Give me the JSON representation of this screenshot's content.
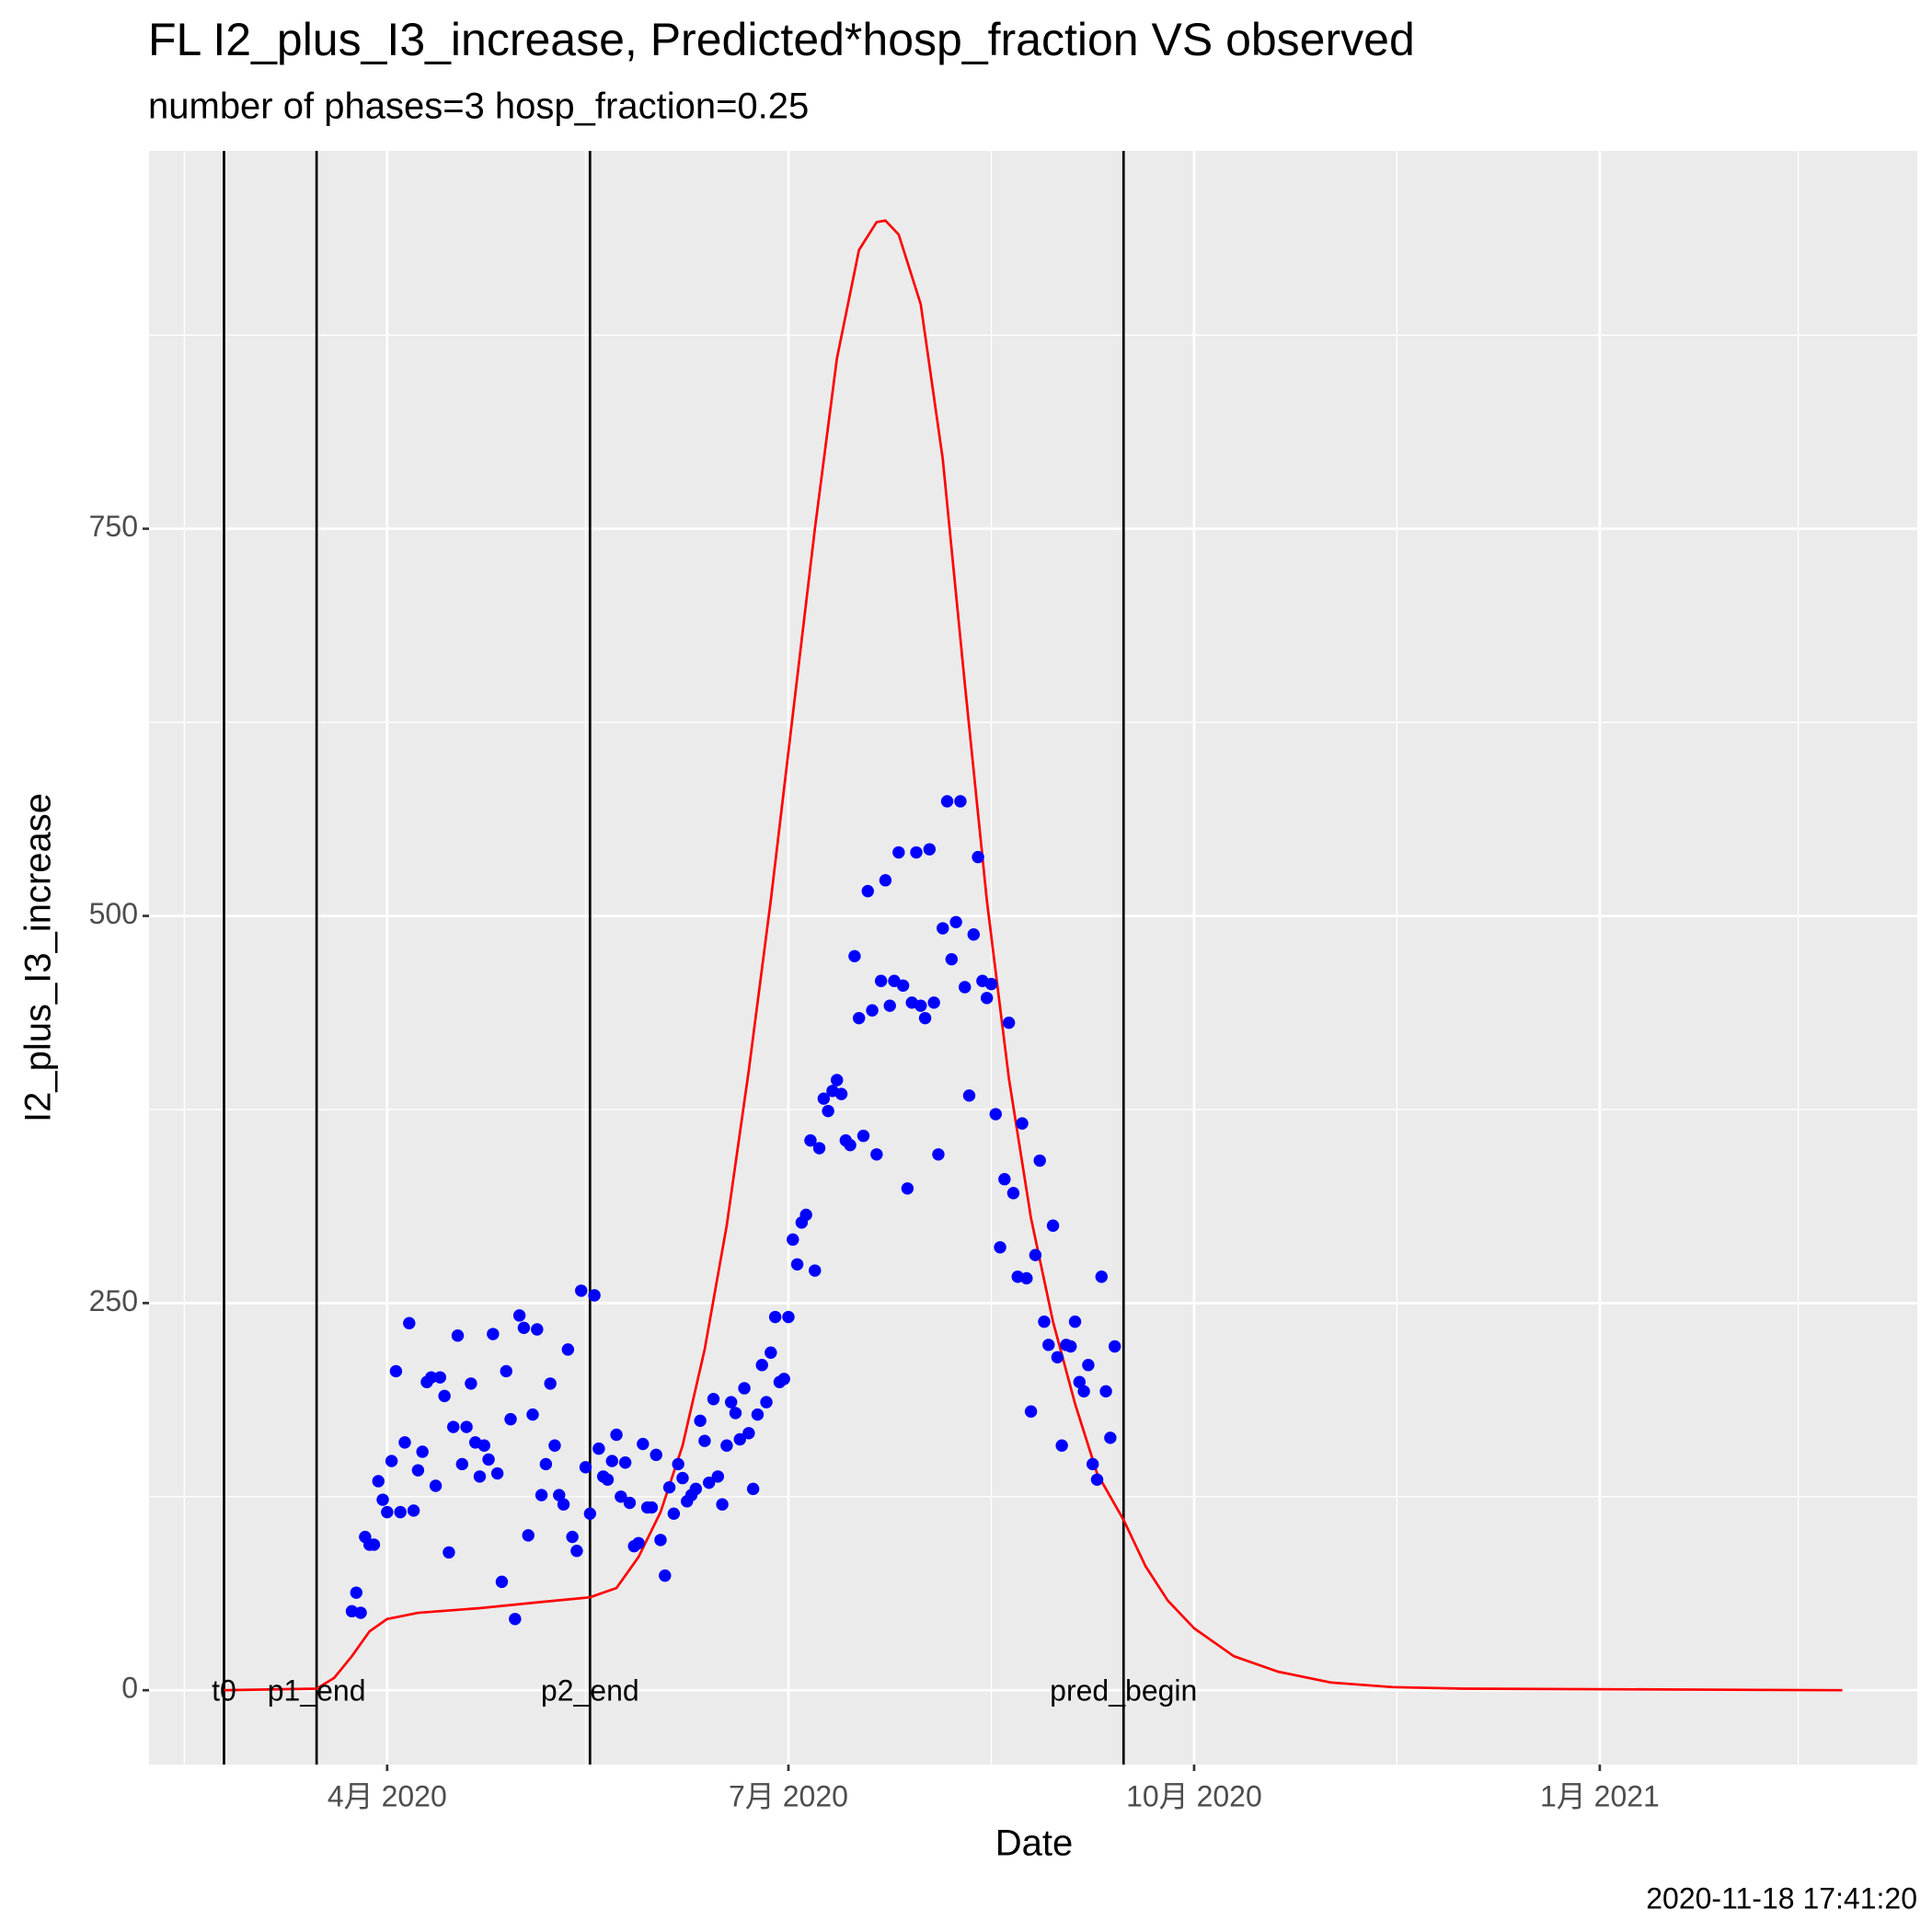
{
  "chart_data": {
    "type": "scatter",
    "title": "FL I2_plus_I3_increase, Predicted*hosp_fraction VS observed",
    "subtitle": "number of phases=3   hosp_fraction=0.25",
    "x_label": "Date",
    "y_label": "I2_plus_I3_increase",
    "caption": "2020-11-18 17:41:20",
    "grid": true,
    "xlim": [
      "2020-02-07",
      "2021-03-14"
    ],
    "ylim": [
      -48,
      994
    ],
    "xticks": [
      {
        "value": "2020-04-01",
        "label": "4月 2020"
      },
      {
        "value": "2020-07-01",
        "label": "7月 2020"
      },
      {
        "value": "2020-10-01",
        "label": "10月 2020"
      },
      {
        "value": "2021-01-01",
        "label": "1月 2021"
      }
    ],
    "xminorticks": [
      "2020-02-15",
      "2020-05-16",
      "2020-08-16",
      "2020-11-16",
      "2021-02-15"
    ],
    "yticks": [
      0,
      250,
      500,
      750
    ],
    "yminorticks": [
      125,
      375,
      625,
      875
    ],
    "vlines": [
      {
        "x": "2020-02-24",
        "label": "t0"
      },
      {
        "x": "2020-03-16",
        "label": "p1_end"
      },
      {
        "x": "2020-05-17",
        "label": "p2_end"
      },
      {
        "x": "2020-09-15",
        "label": "pred_begin"
      }
    ],
    "predicted": {
      "color": "#ff0000",
      "x": [
        "2020-02-24",
        "2020-03-16",
        "2020-03-20",
        "2020-03-24",
        "2020-03-28",
        "2020-04-01",
        "2020-04-08",
        "2020-04-22",
        "2020-05-06",
        "2020-05-17",
        "2020-05-23",
        "2020-05-28",
        "2020-06-02",
        "2020-06-07",
        "2020-06-12",
        "2020-06-17",
        "2020-06-22",
        "2020-06-27",
        "2020-07-02",
        "2020-07-07",
        "2020-07-12",
        "2020-07-17",
        "2020-07-21",
        "2020-07-23",
        "2020-07-26",
        "2020-07-31",
        "2020-08-05",
        "2020-08-10",
        "2020-08-15",
        "2020-08-20",
        "2020-08-25",
        "2020-08-30",
        "2020-09-04",
        "2020-09-09",
        "2020-09-15",
        "2020-09-20",
        "2020-09-25",
        "2020-10-01",
        "2020-10-10",
        "2020-10-20",
        "2020-11-01",
        "2020-11-15",
        "2020-12-01",
        "2021-02-25"
      ],
      "values": [
        0,
        1,
        8,
        22,
        38,
        46,
        50,
        53,
        57,
        60,
        66,
        86,
        115,
        158,
        220,
        300,
        400,
        510,
        630,
        750,
        860,
        930,
        948,
        949,
        940,
        895,
        795,
        650,
        510,
        395,
        305,
        238,
        185,
        140,
        110,
        80,
        58,
        40,
        22,
        12,
        5,
        2,
        1,
        0
      ]
    },
    "observed": {
      "color": "#0000ff",
      "x": [
        "2020-03-24",
        "2020-03-25",
        "2020-03-26",
        "2020-03-27",
        "2020-03-28",
        "2020-03-29",
        "2020-03-30",
        "2020-03-31",
        "2020-04-01",
        "2020-04-02",
        "2020-04-03",
        "2020-04-04",
        "2020-04-05",
        "2020-04-06",
        "2020-04-07",
        "2020-04-08",
        "2020-04-09",
        "2020-04-10",
        "2020-04-11",
        "2020-04-12",
        "2020-04-13",
        "2020-04-14",
        "2020-04-15",
        "2020-04-16",
        "2020-04-17",
        "2020-04-18",
        "2020-04-19",
        "2020-04-20",
        "2020-04-21",
        "2020-04-22",
        "2020-04-23",
        "2020-04-24",
        "2020-04-25",
        "2020-04-26",
        "2020-04-27",
        "2020-04-28",
        "2020-04-29",
        "2020-04-30",
        "2020-05-01",
        "2020-05-02",
        "2020-05-03",
        "2020-05-04",
        "2020-05-05",
        "2020-05-06",
        "2020-05-07",
        "2020-05-08",
        "2020-05-09",
        "2020-05-10",
        "2020-05-11",
        "2020-05-12",
        "2020-05-13",
        "2020-05-14",
        "2020-05-15",
        "2020-05-16",
        "2020-05-17",
        "2020-05-18",
        "2020-05-19",
        "2020-05-20",
        "2020-05-21",
        "2020-05-22",
        "2020-05-23",
        "2020-05-24",
        "2020-05-25",
        "2020-05-26",
        "2020-05-27",
        "2020-05-28",
        "2020-05-29",
        "2020-05-30",
        "2020-05-31",
        "2020-06-01",
        "2020-06-02",
        "2020-06-03",
        "2020-06-04",
        "2020-06-05",
        "2020-06-06",
        "2020-06-07",
        "2020-06-08",
        "2020-06-09",
        "2020-06-10",
        "2020-06-11",
        "2020-06-12",
        "2020-06-13",
        "2020-06-14",
        "2020-06-15",
        "2020-06-16",
        "2020-06-17",
        "2020-06-18",
        "2020-06-19",
        "2020-06-20",
        "2020-06-21",
        "2020-06-22",
        "2020-06-23",
        "2020-06-24",
        "2020-06-25",
        "2020-06-26",
        "2020-06-27",
        "2020-06-28",
        "2020-06-29",
        "2020-06-30",
        "2020-07-01",
        "2020-07-02",
        "2020-07-03",
        "2020-07-04",
        "2020-07-05",
        "2020-07-06",
        "2020-07-07",
        "2020-07-08",
        "2020-07-09",
        "2020-07-10",
        "2020-07-11",
        "2020-07-12",
        "2020-07-13",
        "2020-07-14",
        "2020-07-15",
        "2020-07-16",
        "2020-07-17",
        "2020-07-18",
        "2020-07-19",
        "2020-07-20",
        "2020-07-21",
        "2020-07-22",
        "2020-07-23",
        "2020-07-24",
        "2020-07-25",
        "2020-07-26",
        "2020-07-27",
        "2020-07-28",
        "2020-07-29",
        "2020-07-30",
        "2020-07-31",
        "2020-08-01",
        "2020-08-02",
        "2020-08-03",
        "2020-08-04",
        "2020-08-05",
        "2020-08-06",
        "2020-08-07",
        "2020-08-08",
        "2020-08-09",
        "2020-08-10",
        "2020-08-11",
        "2020-08-12",
        "2020-08-13",
        "2020-08-14",
        "2020-08-15",
        "2020-08-16",
        "2020-08-17",
        "2020-08-18",
        "2020-08-19",
        "2020-08-20",
        "2020-08-21",
        "2020-08-22",
        "2020-08-23",
        "2020-08-24",
        "2020-08-25",
        "2020-08-26",
        "2020-08-27",
        "2020-08-28",
        "2020-08-29",
        "2020-08-30",
        "2020-08-31",
        "2020-09-01",
        "2020-09-02",
        "2020-09-03",
        "2020-09-04",
        "2020-09-05",
        "2020-09-06",
        "2020-09-07",
        "2020-09-08",
        "2020-09-09",
        "2020-09-10",
        "2020-09-11",
        "2020-09-12",
        "2020-09-13"
      ],
      "values": [
        51,
        63,
        50,
        99,
        94,
        94,
        135,
        123,
        115,
        148,
        206,
        115,
        160,
        237,
        116,
        142,
        154,
        199,
        202,
        132,
        202,
        190,
        89,
        170,
        229,
        146,
        170,
        198,
        160,
        138,
        158,
        149,
        230,
        140,
        70,
        206,
        175,
        46,
        242,
        234,
        100,
        178,
        233,
        126,
        146,
        198,
        158,
        126,
        120,
        220,
        99,
        90,
        258,
        144,
        114,
        255,
        156,
        138,
        136,
        148,
        165,
        125,
        147,
        121,
        93,
        95,
        159,
        118,
        118,
        152,
        97,
        74,
        131,
        114,
        146,
        137,
        122,
        126,
        130,
        174,
        161,
        134,
        188,
        138,
        120,
        158,
        186,
        179,
        162,
        195,
        166,
        130,
        178,
        210,
        186,
        218,
        241,
        199,
        201,
        241,
        291,
        275,
        302,
        307,
        355,
        271,
        350,
        382,
        374,
        387,
        394,
        385,
        355,
        352,
        474,
        434,
        358,
        516,
        439,
        346,
        458,
        523,
        442,
        458,
        541,
        455,
        324,
        444,
        541,
        442,
        434,
        543,
        444,
        346,
        492,
        574,
        472,
        496,
        574,
        454,
        384,
        488,
        538,
        458,
        447,
        456,
        372,
        286,
        330,
        431,
        321,
        267,
        366,
        266,
        180,
        281,
        342,
        238,
        223,
        300,
        215,
        158,
        223,
        222,
        238,
        199,
        193,
        210,
        146,
        136,
        267,
        193,
        163,
        222
      ]
    }
  }
}
